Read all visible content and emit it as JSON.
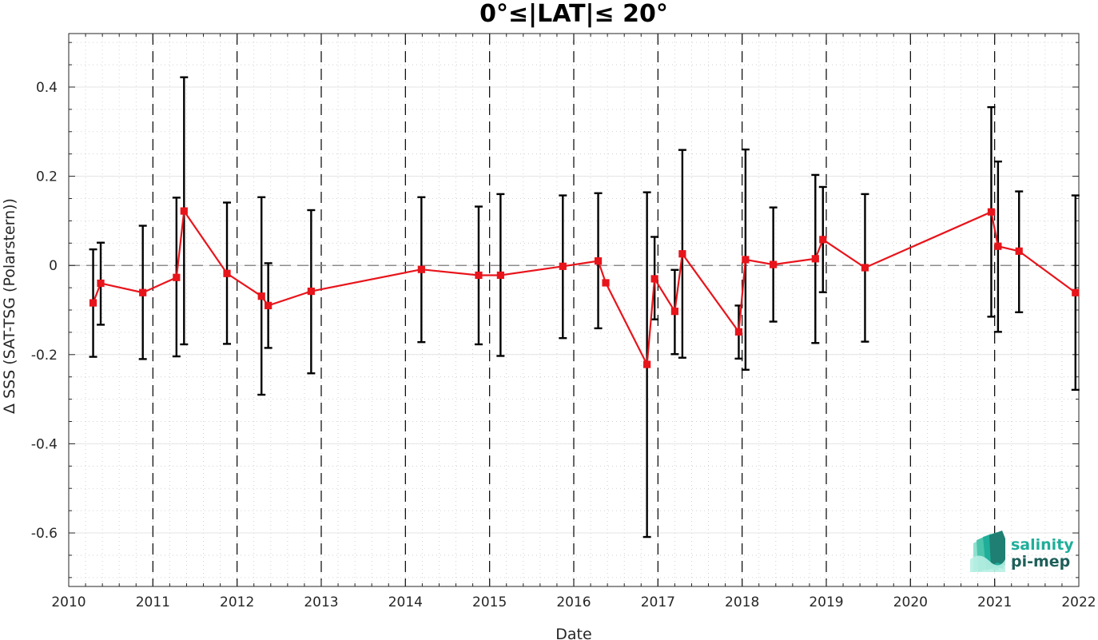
{
  "chart_data": {
    "type": "line",
    "title": "0°≤|LAT|≤ 20°",
    "xlabel": "Date",
    "ylabel": "Δ SSS (SAT-TSG (Polarstern))",
    "xlim": [
      2010,
      2022
    ],
    "ylim": [
      -0.72,
      0.52
    ],
    "x_ticks": [
      "2010",
      "2011",
      "2012",
      "2013",
      "2014",
      "2015",
      "2016",
      "2017",
      "2018",
      "2019",
      "2020",
      "2021",
      "2022"
    ],
    "y_ticks": [
      {
        "value": 0.4,
        "label": "0.4"
      },
      {
        "value": 0.2,
        "label": "0.2"
      },
      {
        "value": 0,
        "label": "0"
      },
      {
        "value": -0.2,
        "label": "-0.2"
      },
      {
        "value": -0.4,
        "label": "-0.4"
      },
      {
        "value": -0.6,
        "label": "-0.6"
      }
    ],
    "grid": true,
    "reference_line_y": 0,
    "year_boundary_lines": "dashed",
    "series": [
      {
        "color": "#e8141b",
        "marker": "square",
        "points": [
          {
            "x": 2010.29,
            "y": -0.084,
            "lo": -0.205,
            "hi": 0.036
          },
          {
            "x": 2010.38,
            "y": -0.04,
            "lo": -0.133,
            "hi": 0.051
          },
          {
            "x": 2010.88,
            "y": -0.061,
            "lo": -0.21,
            "hi": 0.089
          },
          {
            "x": 2011.28,
            "y": -0.027,
            "lo": -0.204,
            "hi": 0.152
          },
          {
            "x": 2011.37,
            "y": 0.122,
            "lo": -0.177,
            "hi": 0.422
          },
          {
            "x": 2011.88,
            "y": -0.018,
            "lo": -0.176,
            "hi": 0.141
          },
          {
            "x": 2012.29,
            "y": -0.069,
            "lo": -0.29,
            "hi": 0.153
          },
          {
            "x": 2012.37,
            "y": -0.09,
            "lo": -0.185,
            "hi": 0.005
          },
          {
            "x": 2012.88,
            "y": -0.058,
            "lo": -0.242,
            "hi": 0.124
          },
          {
            "x": 2014.19,
            "y": -0.009,
            "lo": -0.172,
            "hi": 0.153
          },
          {
            "x": 2014.87,
            "y": -0.022,
            "lo": -0.177,
            "hi": 0.132
          },
          {
            "x": 2015.13,
            "y": -0.022,
            "lo": -0.203,
            "hi": 0.16
          },
          {
            "x": 2015.87,
            "y": -0.002,
            "lo": -0.163,
            "hi": 0.157
          },
          {
            "x": 2016.29,
            "y": 0.01,
            "lo": -0.141,
            "hi": 0.162
          },
          {
            "x": 2016.38,
            "y": -0.039,
            "lo": -0.039,
            "hi": -0.039
          },
          {
            "x": 2016.87,
            "y": -0.222,
            "lo": -0.609,
            "hi": 0.164
          },
          {
            "x": 2016.96,
            "y": -0.03,
            "lo": -0.121,
            "hi": 0.064
          },
          {
            "x": 2017.2,
            "y": -0.103,
            "lo": -0.199,
            "hi": -0.01
          },
          {
            "x": 2017.29,
            "y": 0.026,
            "lo": -0.207,
            "hi": 0.259
          },
          {
            "x": 2017.96,
            "y": -0.149,
            "lo": -0.209,
            "hi": -0.09
          },
          {
            "x": 2018.04,
            "y": 0.013,
            "lo": -0.234,
            "hi": 0.26
          },
          {
            "x": 2018.37,
            "y": 0.002,
            "lo": -0.126,
            "hi": 0.13
          },
          {
            "x": 2018.87,
            "y": 0.015,
            "lo": -0.174,
            "hi": 0.203
          },
          {
            "x": 2018.96,
            "y": 0.058,
            "lo": -0.06,
            "hi": 0.176
          },
          {
            "x": 2019.46,
            "y": -0.005,
            "lo": -0.171,
            "hi": 0.16
          },
          {
            "x": 2020.96,
            "y": 0.12,
            "lo": -0.115,
            "hi": 0.355
          },
          {
            "x": 2021.04,
            "y": 0.043,
            "lo": -0.149,
            "hi": 0.233
          },
          {
            "x": 2021.29,
            "y": 0.032,
            "lo": -0.105,
            "hi": 0.166
          },
          {
            "x": 2021.96,
            "y": -0.061,
            "lo": -0.279,
            "hi": 0.157
          }
        ]
      }
    ]
  },
  "logo": {
    "line1": "salinity",
    "line2": "pi-mep",
    "color1": "#1fae9a",
    "color2": "#1e5f5a"
  }
}
